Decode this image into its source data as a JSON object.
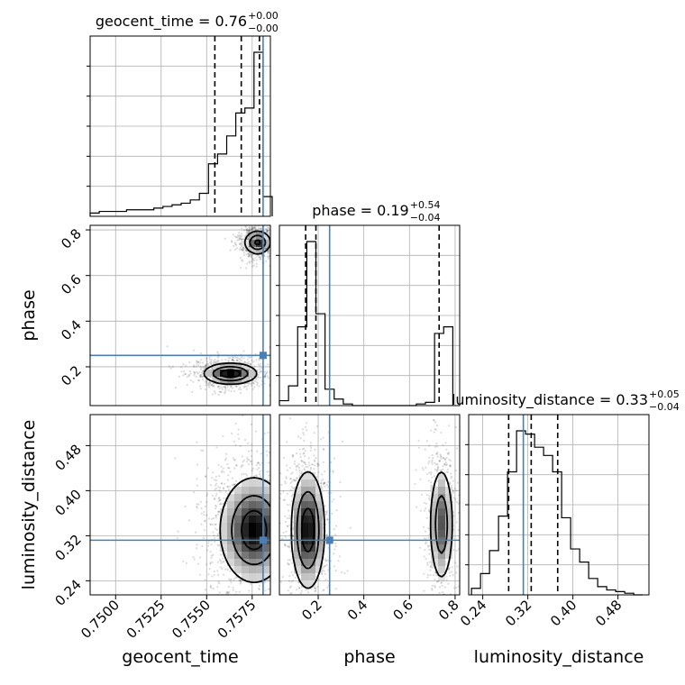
{
  "chart_data": {
    "type": "corner",
    "parameters": [
      "geocent_time",
      "phase",
      "luminosity_distance"
    ],
    "xlabels": {
      "geocent_time": "geocent_time",
      "phase": "phase",
      "luminosity_distance": "luminosity_distance"
    },
    "ylabels": {
      "phase": "phase",
      "luminosity_distance": "luminosity_distance"
    },
    "ranges": {
      "geocent_time": [
        0.7486,
        0.7585
      ],
      "phase": [
        0.03,
        0.82
      ],
      "luminosity_distance": [
        0.215,
        0.535
      ]
    },
    "ticks": {
      "geocent_time": [
        0.75,
        0.7525,
        0.755,
        0.7575
      ],
      "phase": [
        0.2,
        0.4,
        0.6,
        0.8
      ],
      "luminosity_distance": [
        0.24,
        0.32,
        0.4,
        0.48
      ]
    },
    "tick_labels": {
      "geocent_time": [
        "0.7500",
        "0.7525",
        "0.7550",
        "0.7575"
      ],
      "phase": [
        "0.2",
        "0.4",
        "0.6",
        "0.8"
      ],
      "luminosity_distance": [
        "0.24",
        "0.32",
        "0.40",
        "0.48"
      ]
    },
    "truths": {
      "geocent_time": 0.7581,
      "phase": 0.25,
      "luminosity_distance": 0.312
    },
    "titles": {
      "geocent_time": {
        "prefix": "geocent_time = 0.76",
        "plus": "+0.00",
        "minus": "−0.00"
      },
      "phase": {
        "prefix": "phase = 0.19",
        "plus": "+0.54",
        "minus": "−0.04"
      },
      "luminosity_distance": {
        "prefix": "luminosity_distance = 0.33",
        "plus": "+0.05",
        "minus": "−0.04"
      }
    },
    "quantiles": {
      "geocent_time": [
        0.75545,
        0.7569,
        0.7579
      ],
      "phase": [
        0.145,
        0.19,
        0.73
      ],
      "luminosity_distance": [
        0.286,
        0.326,
        0.373
      ]
    },
    "histograms": {
      "geocent_time": {
        "bins": [
          0.7486,
          0.7491,
          0.7496,
          0.7501,
          0.7506,
          0.7511,
          0.7516,
          0.7521,
          0.7526,
          0.7531,
          0.7536,
          0.7541,
          0.7546,
          0.7551,
          0.7556,
          0.7561,
          0.7566,
          0.7571,
          0.7576,
          0.7581,
          0.7586
        ],
        "counts": [
          2,
          3,
          3,
          3,
          4,
          4,
          4,
          5,
          6,
          7,
          8,
          10,
          14,
          32,
          38,
          49,
          63,
          66,
          100,
          12
        ]
      },
      "phase": {
        "bins": [
          0.03,
          0.07,
          0.11,
          0.15,
          0.19,
          0.23,
          0.27,
          0.31,
          0.35,
          0.39,
          0.43,
          0.47,
          0.51,
          0.55,
          0.59,
          0.63,
          0.67,
          0.71,
          0.75,
          0.79
        ],
        "counts": [
          3,
          12,
          48,
          100,
          56,
          10,
          4,
          1,
          0,
          0,
          0,
          0,
          0,
          0,
          0,
          1,
          2,
          44,
          48
        ]
      },
      "luminosity_distance": {
        "bins": [
          0.22,
          0.236,
          0.252,
          0.268,
          0.284,
          0.3,
          0.316,
          0.332,
          0.348,
          0.364,
          0.38,
          0.396,
          0.412,
          0.428,
          0.444,
          0.46,
          0.476,
          0.492,
          0.508,
          0.524
        ],
        "counts": [
          4,
          13,
          27,
          48,
          75,
          100,
          98,
          90,
          85,
          75,
          47,
          28,
          20,
          10,
          5,
          3,
          2,
          1,
          0
        ]
      }
    },
    "modes_2d": {
      "geocent_time_vs_phase": [
        {
          "x": 0.7578,
          "y": 0.745,
          "sx": 0.00035,
          "sy": 0.025,
          "w": 0.45
        },
        {
          "x": 0.7563,
          "y": 0.17,
          "sx": 0.0007,
          "sy": 0.022,
          "w": 0.55
        }
      ],
      "geocent_time_vs_luminosity_distance": [
        {
          "x": 0.7576,
          "y": 0.33,
          "sx": 0.0009,
          "sy": 0.045,
          "w": 1.0
        }
      ],
      "phase_vs_luminosity_distance": [
        {
          "x": 0.155,
          "y": 0.33,
          "sx": 0.035,
          "sy": 0.05,
          "w": 0.6
        },
        {
          "x": 0.74,
          "y": 0.34,
          "sx": 0.025,
          "sy": 0.05,
          "w": 0.4
        }
      ]
    }
  }
}
